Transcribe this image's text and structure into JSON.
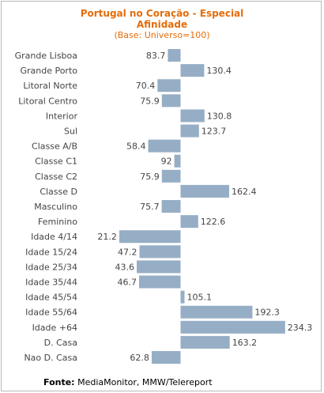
{
  "chart_data": {
    "type": "bar",
    "orientation": "horizontal",
    "title": "Portugal no Coração - Especial",
    "title_line2": "Afinidade",
    "subtitle": "(Base: Universo=100)",
    "baseline": 100,
    "categories": [
      "Grande Lisboa",
      "Grande Porto",
      "Litoral Norte",
      "Litoral Centro",
      "Interior",
      "Sul",
      "Classe A/B",
      "Classe C1",
      "Classe C2",
      "Classe D",
      "Masculino",
      "Feminino",
      "Idade 4/14",
      "Idade 15/24",
      "Idade 25/34",
      "Idade 35/44",
      "Idade 45/54",
      "Idade 55/64",
      "Idade +64",
      "D. Casa",
      "Nao D. Casa"
    ],
    "values": [
      83.7,
      130.4,
      70.4,
      75.9,
      130.8,
      123.7,
      58.4,
      92,
      75.9,
      162.4,
      75.7,
      122.6,
      21.2,
      47.2,
      43.6,
      46.7,
      105.1,
      192.3,
      234.3,
      163.2,
      62.8
    ],
    "value_labels": [
      "83.7",
      "130.4",
      "70.4",
      "75.9",
      "130.8",
      "123.7",
      "58.4",
      "92",
      "75.9",
      "162.4",
      "75.7",
      "122.6",
      "21.2",
      "47.2",
      "43.6",
      "46.7",
      "105.1",
      "192.3",
      "234.3",
      "163.2",
      "62.8"
    ],
    "bar_color": "#96aec5",
    "grid": false,
    "legend": "none"
  },
  "colors": {
    "title": "#e46c0a",
    "bar": "#96aec5",
    "text": "#444444"
  },
  "footer": {
    "label": "Fonte:",
    "text": "MediaMonitor, MMW/Telereport"
  }
}
